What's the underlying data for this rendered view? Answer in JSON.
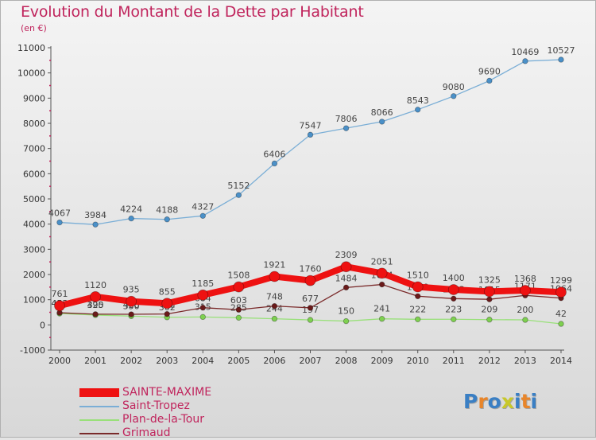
{
  "title": "Evolution du Montant de la Dette par Habitant",
  "subtitle": "(en €)",
  "logo": {
    "letters": [
      "P",
      "r",
      "o",
      "x",
      "i",
      "t",
      "i"
    ],
    "colors": [
      "#3a7fc4",
      "#e8852a",
      "#3a7fc4",
      "#c8c82a",
      "#3a7fc4",
      "#e8852a",
      "#3a7fc4"
    ]
  },
  "chart_data": {
    "type": "line",
    "x": [
      "2000",
      "2001",
      "2002",
      "2003",
      "2004",
      "2005",
      "2006",
      "2007",
      "2008",
      "2009",
      "2010",
      "2011",
      "2012",
      "2013",
      "2014"
    ],
    "ylim": [
      -1000,
      11000
    ],
    "yticks": [
      -1000,
      0,
      1000,
      2000,
      3000,
      4000,
      5000,
      6000,
      7000,
      8000,
      9000,
      10000,
      11000
    ],
    "grid": false,
    "legend_position": "bottom-left",
    "series": [
      {
        "name": "Saint-Tropez",
        "color": "#7aaed6",
        "marker": "#4a90c8",
        "values": [
          4067,
          3984,
          4224,
          4188,
          4327,
          5152,
          6406,
          7547,
          7806,
          8066,
          8543,
          9080,
          9690,
          10469,
          10527
        ],
        "labels": [
          "4067",
          "3984",
          "4224",
          "4188",
          "4327",
          "5152",
          "6406",
          "7547",
          "7806",
          "8066",
          "8543",
          "9080",
          "9690",
          "10469",
          "10527"
        ]
      },
      {
        "name": "Plan-de-la-Tour",
        "color": "#99e07a",
        "marker": "#7ed050",
        "values": [
          452,
          390,
          350,
          302,
          315,
          285,
          244,
          197,
          150,
          241,
          222,
          223,
          209,
          200,
          42
        ],
        "labels": [
          "452",
          "390",
          "350",
          "302",
          "315",
          "285",
          "244",
          "197",
          "150",
          "241",
          "222",
          "223",
          "209",
          "200",
          "42"
        ]
      },
      {
        "name": "Grimaud",
        "color": "#7a2a2a",
        "marker": "#6a1a1a",
        "values": [
          483,
          425,
          420,
          432,
          684,
          603,
          748,
          677,
          1484,
          1604,
          1139,
          1043,
          1015,
          1171,
          1064
        ],
        "labels": [
          "483",
          "425",
          "420",
          "432",
          "684",
          "603",
          "748",
          "677",
          "1484",
          "1604",
          "1139",
          "1043",
          "1015",
          "1171",
          "1064"
        ]
      },
      {
        "name": "SAINTE-MAXIME",
        "color": "#ee1111",
        "marker": "#ee1111",
        "values": [
          761,
          1120,
          935,
          855,
          1185,
          1508,
          1921,
          1760,
          2309,
          2051,
          1510,
          1400,
          1325,
          1368,
          1299
        ],
        "labels": [
          "761",
          "1120",
          "935",
          "855",
          "1185",
          "1508",
          "1921",
          "1760",
          "2309",
          "2051",
          "1510",
          "1400",
          "1325",
          "1368",
          "1299"
        ]
      }
    ],
    "legend_order": [
      "SAINTE-MAXIME",
      "Saint-Tropez",
      "Plan-de-la-Tour",
      "Grimaud"
    ]
  }
}
